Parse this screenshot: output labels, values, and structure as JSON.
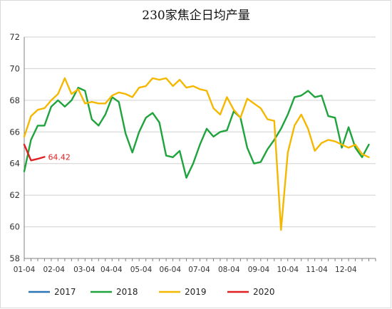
{
  "chart_data": {
    "type": "line",
    "title": "230家焦企日均产量",
    "xlabel": "",
    "ylabel": "",
    "ylim": [
      58,
      72
    ],
    "yticks": [
      58,
      60,
      62,
      64,
      66,
      68,
      70,
      72
    ],
    "xlim": [
      0,
      52
    ],
    "x_ticks": [
      {
        "pos": 0,
        "label": "01-04"
      },
      {
        "pos": 4.4,
        "label": "02-04"
      },
      {
        "pos": 8.9,
        "label": "03-04"
      },
      {
        "pos": 12.9,
        "label": "04-04"
      },
      {
        "pos": 17.3,
        "label": "05-04"
      },
      {
        "pos": 21.6,
        "label": "06-04"
      },
      {
        "pos": 25.9,
        "label": "07-04"
      },
      {
        "pos": 30.3,
        "label": "08-04"
      },
      {
        "pos": 34.7,
        "label": "09-04"
      },
      {
        "pos": 39.0,
        "label": "10-04"
      },
      {
        "pos": 43.3,
        "label": "11-04"
      },
      {
        "pos": 47.6,
        "label": "12-04"
      }
    ],
    "grid": {
      "x": false,
      "y": true
    },
    "legend": "bottom",
    "series": [
      {
        "name": "2017",
        "color": "#2e75b6",
        "x": [],
        "y": []
      },
      {
        "name": "2018",
        "color": "#1fa33c",
        "x": [
          0,
          1,
          2,
          3,
          4,
          5,
          6,
          7,
          8,
          9,
          10,
          11,
          12,
          13,
          14,
          15,
          16,
          17,
          18,
          19,
          20,
          21,
          22,
          23,
          24,
          25,
          26,
          27,
          28,
          29,
          30,
          31,
          32,
          33,
          34,
          35,
          36,
          37,
          38,
          39,
          40,
          41,
          42,
          43,
          44,
          45,
          46,
          47,
          48,
          49,
          50,
          51
        ],
        "y": [
          63.5,
          65.5,
          66.4,
          66.4,
          67.6,
          68.0,
          67.6,
          68.0,
          68.8,
          68.6,
          66.8,
          66.4,
          67.1,
          68.2,
          67.9,
          65.9,
          64.7,
          66.0,
          66.9,
          67.2,
          66.6,
          64.5,
          64.4,
          64.8,
          63.1,
          64.0,
          65.2,
          66.2,
          65.7,
          66.0,
          66.1,
          67.3,
          66.9,
          65.0,
          64.0,
          64.1,
          64.9,
          65.5,
          66.2,
          67.1,
          68.2,
          68.3,
          68.6,
          68.2,
          68.3,
          67.0,
          66.9,
          65.0,
          66.3,
          65.0,
          64.4,
          65.2
        ]
      },
      {
        "name": "2019",
        "color": "#f5b800",
        "x": [
          0,
          1,
          2,
          3,
          4,
          5,
          6,
          7,
          8,
          9,
          10,
          11,
          12,
          13,
          14,
          15,
          16,
          17,
          18,
          19,
          20,
          21,
          22,
          23,
          24,
          25,
          26,
          27,
          28,
          29,
          30,
          31,
          32,
          33,
          34,
          35,
          36,
          37,
          38,
          39,
          40,
          41,
          42,
          43,
          44,
          45,
          46,
          47,
          48,
          49,
          50,
          51
        ],
        "y": [
          65.7,
          67.0,
          67.4,
          67.5,
          68.0,
          68.4,
          69.4,
          68.4,
          68.7,
          67.8,
          67.9,
          67.8,
          67.8,
          68.3,
          68.5,
          68.4,
          68.2,
          68.8,
          68.9,
          69.4,
          69.3,
          69.4,
          68.9,
          69.3,
          68.8,
          68.9,
          68.7,
          68.6,
          67.5,
          67.1,
          68.2,
          67.4,
          66.9,
          68.1,
          67.8,
          67.5,
          66.8,
          66.7,
          59.8,
          64.7,
          66.4,
          67.1,
          66.2,
          64.8,
          65.3,
          65.5,
          65.4,
          65.2,
          65.0,
          65.2,
          64.6,
          64.4
        ]
      },
      {
        "name": "2020",
        "color": "#e02020",
        "x": [
          0,
          1,
          2,
          3
        ],
        "y": [
          65.2,
          64.2,
          64.3,
          64.42
        ],
        "end_label": "64.42"
      }
    ]
  }
}
